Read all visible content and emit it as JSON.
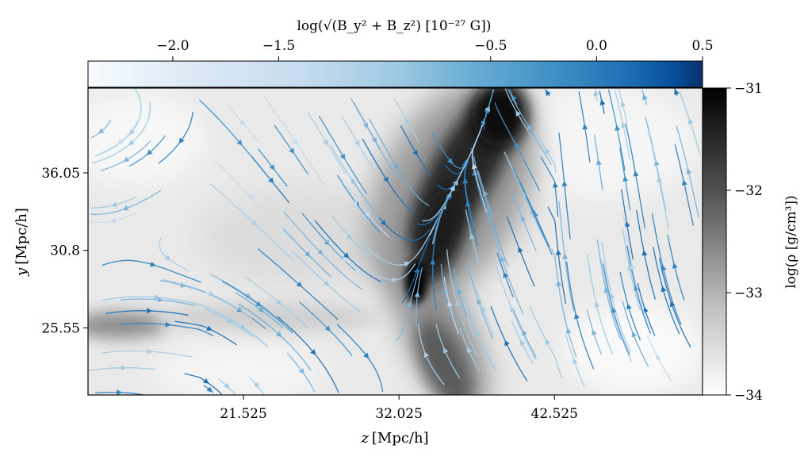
{
  "chart_data": {
    "type": "heatmap",
    "title": "",
    "xlabel": "z [Mpc/h]",
    "ylabel": "y [Mpc/h]",
    "x_ticks": [
      "21.525",
      "32.025",
      "42.525"
    ],
    "x_tick_values": [
      21.525,
      32.025,
      42.525
    ],
    "y_ticks": [
      "36.05",
      "30.8",
      "25.55"
    ],
    "y_tick_values": [
      36.05,
      30.8,
      25.55
    ],
    "xlim": [
      11.025,
      52.525
    ],
    "ylim": [
      21.0,
      41.8
    ],
    "background_field": {
      "quantity": "log(ρ [g/cm³])",
      "colormap": "gray_r",
      "range": [
        -34,
        -31
      ],
      "colorbar_ticks": [
        "−31",
        "−32",
        "−33",
        "−34"
      ],
      "colorbar_tick_values": [
        -31,
        -32,
        -33,
        -34
      ],
      "colorbar_position": "right"
    },
    "overlay": {
      "type": "streamplot",
      "quantity": "log(√(B_y² + B_z²) [10⁻²⁷ G])",
      "colormap": "Blues",
      "range": [
        -2.4,
        0.5
      ],
      "colorbar_ticks": [
        "−2.0",
        "−1.5",
        "−0.5",
        "0.0",
        "0.5"
      ],
      "colorbar_tick_values": [
        -2.0,
        -1.5,
        -0.5,
        0.0,
        0.5
      ],
      "colorbar_position": "top"
    },
    "features": [
      {
        "name": "filament",
        "description": "dense diagonal structure",
        "z_range": [
          30.5,
          37.5
        ],
        "y_range": [
          21.0,
          41.8
        ],
        "peak_log_rho": -31.0
      }
    ]
  },
  "labels": {
    "top_colorbar_label": "log(√(B_y² + B_z²) [10⁻²⁷ G])",
    "right_colorbar_label": "log(ρ [g/cm³])",
    "xlabel_var": "z",
    "xlabel_unit": "[Mpc/h]",
    "ylabel_var": "y",
    "ylabel_unit": "[Mpc/h]"
  }
}
